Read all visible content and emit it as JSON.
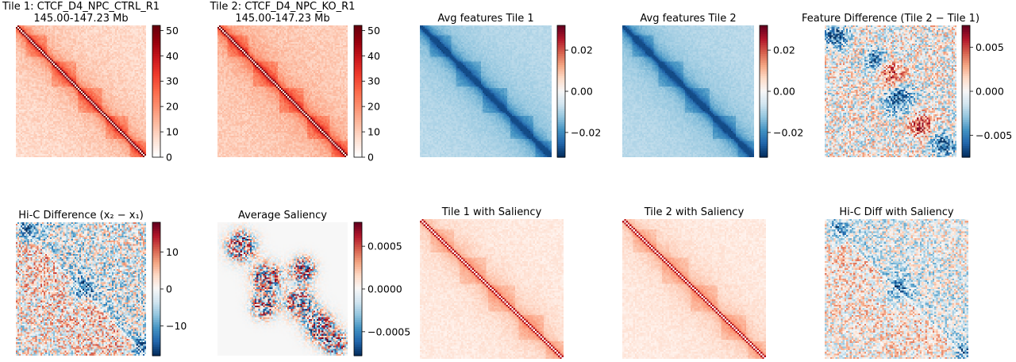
{
  "figure": {
    "title": ""
  },
  "colormaps": {
    "reds": [
      "#ffffff",
      "#fee0d2",
      "#fcbba1",
      "#fc9272",
      "#fb6a4a",
      "#ef3b2c",
      "#cb181d",
      "#99000d",
      "#67000d"
    ],
    "rdbu": [
      "#053061",
      "#2166ac",
      "#4393c3",
      "#92c5de",
      "#d1e5f0",
      "#f7f7f7",
      "#fddbc7",
      "#f4a582",
      "#d6604d",
      "#b2182b",
      "#67001f"
    ]
  },
  "chart_data": [
    {
      "type": "heatmap",
      "title_lines": [
        "Tile 1: CTCF_D4_NPC_CTRL_R1",
        "145.00-147.23 Mb"
      ],
      "cmap": "reds",
      "vmin": 0,
      "vmax": 52,
      "colorbar": {
        "ticks": [
          0,
          10,
          20,
          30,
          40,
          50
        ],
        "tick_labels": [
          "0",
          "10",
          "20",
          "30",
          "40",
          "50"
        ]
      }
    },
    {
      "type": "heatmap",
      "title_lines": [
        "Tile 2: CTCF_D4_NPC_KO_R1",
        "145.00-147.23 Mb"
      ],
      "cmap": "reds",
      "vmin": 0,
      "vmax": 52,
      "colorbar": {
        "ticks": [
          0,
          10,
          20,
          30,
          40,
          50
        ],
        "tick_labels": [
          "0",
          "10",
          "20",
          "30",
          "40",
          "50"
        ]
      }
    },
    {
      "type": "heatmap",
      "title_lines": [
        "Avg features Tile 1"
      ],
      "cmap": "rdbu",
      "vmin": -0.032,
      "vmax": 0.032,
      "colorbar": {
        "ticks": [
          -0.02,
          0,
          0.02
        ],
        "tick_labels": [
          "−0.02",
          "0.00",
          "0.02"
        ]
      }
    },
    {
      "type": "heatmap",
      "title_lines": [
        "Avg features Tile 2"
      ],
      "cmap": "rdbu",
      "vmin": -0.032,
      "vmax": 0.032,
      "colorbar": {
        "ticks": [
          -0.02,
          0,
          0.02
        ],
        "tick_labels": [
          "−0.02",
          "0.00",
          "0.02"
        ]
      }
    },
    {
      "type": "heatmap",
      "title_lines": [
        "Feature Difference (Tile 2 − Tile 1)"
      ],
      "cmap": "rdbu",
      "vmin": -0.0075,
      "vmax": 0.0075,
      "colorbar": {
        "ticks": [
          -0.005,
          0,
          0.005
        ],
        "tick_labels": [
          "−0.005",
          "0.000",
          "0.005"
        ]
      }
    },
    {
      "type": "heatmap",
      "title_lines": [
        "Hi-C Difference (x₂ − x₁)"
      ],
      "cmap": "rdbu",
      "vmin": -18,
      "vmax": 18,
      "colorbar": {
        "ticks": [
          -10,
          0,
          10
        ],
        "tick_labels": [
          "−10",
          "0",
          "10"
        ]
      }
    },
    {
      "type": "heatmap",
      "title_lines": [
        "Average Saliency"
      ],
      "cmap": "rdbu",
      "vmin": -0.00078,
      "vmax": 0.00078,
      "colorbar": {
        "ticks": [
          -0.0005,
          0,
          0.0005
        ],
        "tick_labels": [
          "−0.0005",
          "0.0000",
          "0.0005"
        ]
      }
    },
    {
      "type": "heatmap",
      "title_lines": [
        "Tile 1 with Saliency"
      ],
      "cmap": "reds",
      "colorbar": null
    },
    {
      "type": "heatmap",
      "title_lines": [
        "Tile 2 with Saliency"
      ],
      "cmap": "reds",
      "colorbar": null
    },
    {
      "type": "heatmap",
      "title_lines": [
        "Hi-C Diff with Saliency"
      ],
      "cmap": "rdbu",
      "colorbar": null
    }
  ]
}
